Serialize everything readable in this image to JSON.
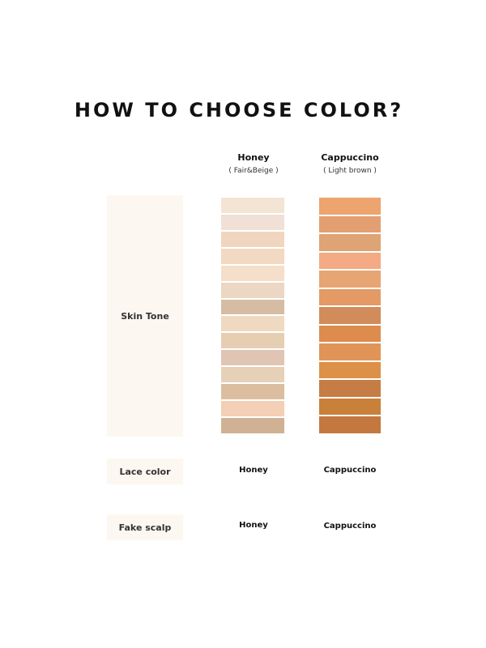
{
  "title": "HOW TO CHOOSE COLOR?",
  "columns": [
    {
      "name": "Honey",
      "subtitle": "( Fair&Beige )",
      "swatches": [
        "#f4e4d4",
        "#f1e0d6",
        "#f0d6bf",
        "#f2d9c1",
        "#f5dfca",
        "#ecd6c4",
        "#d5bca2",
        "#efdac1",
        "#e6ceb3",
        "#e0c5b4",
        "#e6d1b8",
        "#dbbe9f",
        "#f3cfb5",
        "#d1b194"
      ]
    },
    {
      "name": "Cappuccino",
      "subtitle": "( Light brown )",
      "swatches": [
        "#eda46e",
        "#e39f72",
        "#dea475",
        "#f4aa84",
        "#e6a572",
        "#e49a64",
        "#d28b5a",
        "#dd8c4e",
        "#e09457",
        "#dd9047",
        "#c67c45",
        "#c9803a",
        "#c4773f"
      ]
    }
  ],
  "rows": [
    {
      "label": "Skin Tone"
    },
    {
      "label": "Lace color",
      "values": [
        "Honey",
        "Cappuccino"
      ]
    },
    {
      "label": "Fake scalp",
      "values": [
        "Honey",
        "Cappuccino"
      ]
    }
  ]
}
